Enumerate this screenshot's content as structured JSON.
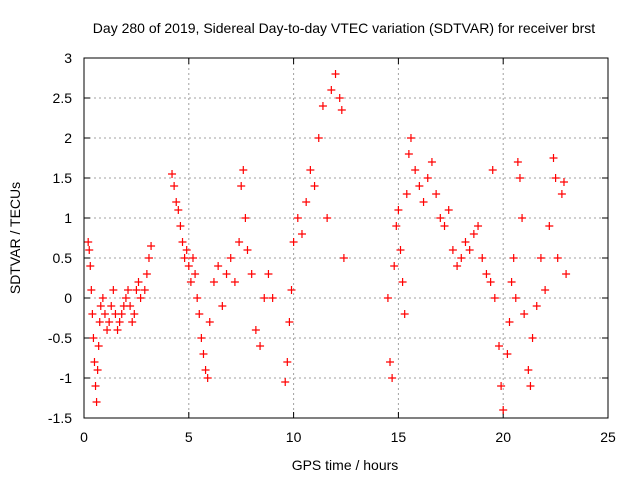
{
  "chart_data": {
    "type": "scatter",
    "title": "Day 280 of 2019, Sidereal Day-to-day VTEC variation (SDTVAR) for receiver brst",
    "xlabel": "GPS time / hours",
    "ylabel": "SDTVAR / TECUs",
    "xlim": [
      0,
      25
    ],
    "ylim": [
      -1.5,
      3
    ],
    "x_ticks": [
      0,
      5,
      10,
      15,
      20,
      25
    ],
    "x_tick_labels": [
      "0",
      "5",
      "10",
      "15",
      "20",
      "25"
    ],
    "y_ticks": [
      -1.5,
      -1,
      -0.5,
      0,
      0.5,
      1,
      1.5,
      2,
      2.5,
      3
    ],
    "y_tick_labels": [
      "-1.5",
      "-1",
      "-0.5",
      "0",
      "0.5",
      "1",
      "1.5",
      "2",
      "2.5",
      "3"
    ],
    "grid": true,
    "marker": "+",
    "series": [
      {
        "name": "SDTVAR",
        "color": "#ff0000",
        "points": [
          [
            0.2,
            0.7
          ],
          [
            0.25,
            0.6
          ],
          [
            0.3,
            0.4
          ],
          [
            0.35,
            0.1
          ],
          [
            0.4,
            -0.2
          ],
          [
            0.45,
            -0.5
          ],
          [
            0.5,
            -0.8
          ],
          [
            0.55,
            -1.1
          ],
          [
            0.6,
            -1.3
          ],
          [
            0.65,
            -0.9
          ],
          [
            0.7,
            -0.6
          ],
          [
            0.75,
            -0.3
          ],
          [
            0.8,
            -0.1
          ],
          [
            0.9,
            0.0
          ],
          [
            1.0,
            -0.2
          ],
          [
            1.1,
            -0.4
          ],
          [
            1.2,
            -0.3
          ],
          [
            1.3,
            -0.1
          ],
          [
            1.4,
            0.1
          ],
          [
            1.5,
            -0.2
          ],
          [
            1.6,
            -0.4
          ],
          [
            1.7,
            -0.3
          ],
          [
            1.8,
            -0.2
          ],
          [
            1.9,
            -0.1
          ],
          [
            2.0,
            0.0
          ],
          [
            2.1,
            0.1
          ],
          [
            2.2,
            -0.1
          ],
          [
            2.3,
            -0.3
          ],
          [
            2.4,
            -0.2
          ],
          [
            2.5,
            0.1
          ],
          [
            2.6,
            0.2
          ],
          [
            2.7,
            0.0
          ],
          [
            2.9,
            0.1
          ],
          [
            3.0,
            0.3
          ],
          [
            3.1,
            0.5
          ],
          [
            3.2,
            0.65
          ],
          [
            4.2,
            1.55
          ],
          [
            4.3,
            1.4
          ],
          [
            4.4,
            1.2
          ],
          [
            4.5,
            1.1
          ],
          [
            4.6,
            0.9
          ],
          [
            4.7,
            0.7
          ],
          [
            4.8,
            0.5
          ],
          [
            4.9,
            0.6
          ],
          [
            5.0,
            0.4
          ],
          [
            5.1,
            0.2
          ],
          [
            5.2,
            0.5
          ],
          [
            5.3,
            0.3
          ],
          [
            5.4,
            0.0
          ],
          [
            5.5,
            -0.2
          ],
          [
            5.6,
            -0.5
          ],
          [
            5.7,
            -0.7
          ],
          [
            5.8,
            -0.9
          ],
          [
            5.9,
            -1.0
          ],
          [
            6.0,
            -0.3
          ],
          [
            6.2,
            0.2
          ],
          [
            6.4,
            0.4
          ],
          [
            6.6,
            -0.1
          ],
          [
            6.8,
            0.3
          ],
          [
            7.0,
            0.5
          ],
          [
            7.2,
            0.2
          ],
          [
            7.4,
            0.7
          ],
          [
            7.5,
            1.4
          ],
          [
            7.6,
            1.6
          ],
          [
            7.7,
            1.0
          ],
          [
            7.8,
            0.6
          ],
          [
            8.0,
            0.3
          ],
          [
            8.2,
            -0.4
          ],
          [
            8.4,
            -0.6
          ],
          [
            8.6,
            0.0
          ],
          [
            8.8,
            0.3
          ],
          [
            9.0,
            0.0
          ],
          [
            9.6,
            -1.05
          ],
          [
            9.7,
            -0.8
          ],
          [
            9.8,
            -0.3
          ],
          [
            9.9,
            0.1
          ],
          [
            10.0,
            0.7
          ],
          [
            10.2,
            1.0
          ],
          [
            10.4,
            0.8
          ],
          [
            10.6,
            1.2
          ],
          [
            10.8,
            1.6
          ],
          [
            11.0,
            1.4
          ],
          [
            11.2,
            2.0
          ],
          [
            11.4,
            2.4
          ],
          [
            11.6,
            1.0
          ],
          [
            11.8,
            2.6
          ],
          [
            12.0,
            2.8
          ],
          [
            12.2,
            2.5
          ],
          [
            12.3,
            2.35
          ],
          [
            12.4,
            0.5
          ],
          [
            14.5,
            0.0
          ],
          [
            14.6,
            -0.8
          ],
          [
            14.7,
            -1.0
          ],
          [
            14.8,
            0.4
          ],
          [
            14.9,
            0.9
          ],
          [
            15.0,
            1.1
          ],
          [
            15.1,
            0.6
          ],
          [
            15.2,
            0.2
          ],
          [
            15.3,
            -0.2
          ],
          [
            15.4,
            1.3
          ],
          [
            15.5,
            1.8
          ],
          [
            15.6,
            2.0
          ],
          [
            15.8,
            1.6
          ],
          [
            16.0,
            1.4
          ],
          [
            16.2,
            1.2
          ],
          [
            16.4,
            1.5
          ],
          [
            16.6,
            1.7
          ],
          [
            16.8,
            1.3
          ],
          [
            17.0,
            1.0
          ],
          [
            17.2,
            0.9
          ],
          [
            17.4,
            1.1
          ],
          [
            17.6,
            0.6
          ],
          [
            17.8,
            0.4
          ],
          [
            18.0,
            0.5
          ],
          [
            18.2,
            0.7
          ],
          [
            18.4,
            0.6
          ],
          [
            18.6,
            0.8
          ],
          [
            18.8,
            0.9
          ],
          [
            19.0,
            0.5
          ],
          [
            19.2,
            0.3
          ],
          [
            19.4,
            0.2
          ],
          [
            19.5,
            1.6
          ],
          [
            19.6,
            0.0
          ],
          [
            19.8,
            -0.6
          ],
          [
            19.9,
            -1.1
          ],
          [
            20.0,
            -1.4
          ],
          [
            20.2,
            -0.7
          ],
          [
            20.3,
            -0.3
          ],
          [
            20.4,
            0.2
          ],
          [
            20.5,
            0.5
          ],
          [
            20.6,
            0.0
          ],
          [
            20.7,
            1.7
          ],
          [
            20.8,
            1.5
          ],
          [
            20.9,
            1.0
          ],
          [
            21.0,
            -0.2
          ],
          [
            21.2,
            -0.9
          ],
          [
            21.3,
            -1.1
          ],
          [
            21.4,
            -0.5
          ],
          [
            21.6,
            -0.1
          ],
          [
            21.8,
            0.5
          ],
          [
            22.0,
            0.1
          ],
          [
            22.2,
            0.9
          ],
          [
            22.4,
            1.75
          ],
          [
            22.5,
            1.5
          ],
          [
            22.6,
            0.5
          ],
          [
            22.8,
            1.3
          ],
          [
            22.9,
            1.45
          ],
          [
            23.0,
            0.3
          ]
        ]
      }
    ]
  }
}
